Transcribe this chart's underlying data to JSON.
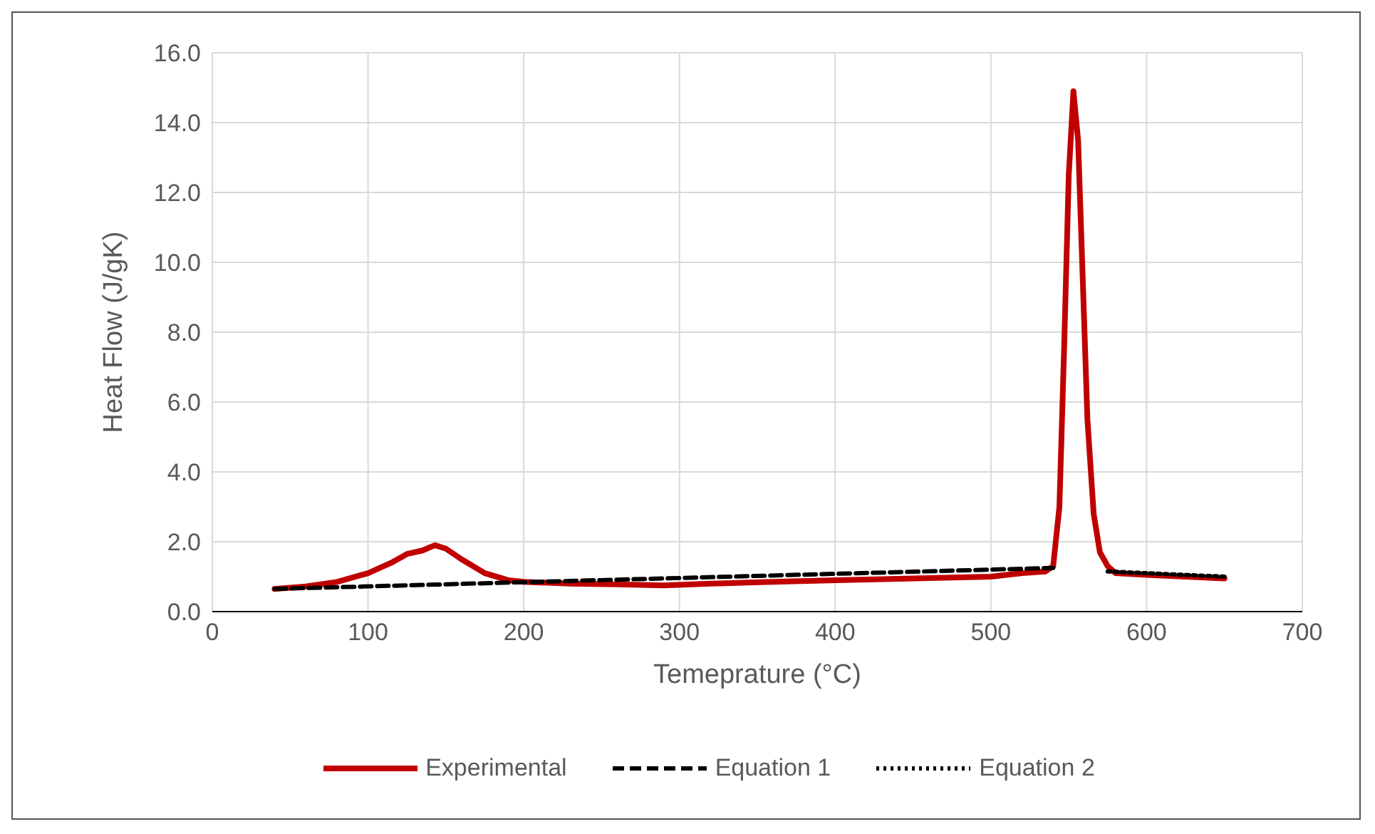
{
  "chart_data": {
    "type": "line",
    "xlabel": "Temeprature (°C)",
    "ylabel": "Heat Flow (J/gK)",
    "xlim": [
      0,
      700
    ],
    "xticks": [
      0,
      100,
      200,
      300,
      400,
      500,
      600,
      700
    ],
    "ylim": [
      0,
      16
    ],
    "yticks": [
      {
        "value": 0,
        "label": "0.0"
      },
      {
        "value": 2,
        "label": "2.0"
      },
      {
        "value": 4,
        "label": "4.0"
      },
      {
        "value": 6,
        "label": "6.0"
      },
      {
        "value": 8,
        "label": "8.0"
      },
      {
        "value": 10,
        "label": "10.0"
      },
      {
        "value": 12,
        "label": "12.0"
      },
      {
        "value": 14,
        "label": "14.0"
      },
      {
        "value": 16,
        "label": "16.0"
      }
    ],
    "grid": true,
    "legend": "bottom",
    "marker": "none",
    "series": [
      {
        "name": "Experimental",
        "color": "#c00000",
        "line_style": "solid",
        "x": [
          40,
          60,
          80,
          100,
          115,
          125,
          135,
          143,
          150,
          160,
          175,
          190,
          200,
          230,
          260,
          290,
          320,
          360,
          400,
          450,
          500,
          520,
          535,
          540,
          544,
          547,
          550,
          553,
          556,
          559,
          562,
          566,
          570,
          575,
          580,
          600,
          625,
          650
        ],
        "values": [
          0.65,
          0.72,
          0.85,
          1.1,
          1.4,
          1.65,
          1.75,
          1.9,
          1.8,
          1.5,
          1.1,
          0.9,
          0.85,
          0.8,
          0.78,
          0.75,
          0.8,
          0.85,
          0.9,
          0.95,
          1.0,
          1.1,
          1.15,
          1.3,
          3.0,
          7.5,
          12.5,
          14.9,
          13.5,
          9.5,
          5.5,
          2.8,
          1.7,
          1.3,
          1.1,
          1.05,
          1.0,
          0.95
        ]
      },
      {
        "name": "Equation 1",
        "color": "#000000",
        "line_style": "dashed",
        "x": [
          40,
          540
        ],
        "values": [
          0.65,
          1.25
        ]
      },
      {
        "name": "Equation 2",
        "color": "#000000",
        "line_style": "dotted",
        "x": [
          575,
          600,
          650
        ],
        "values": [
          1.15,
          1.1,
          1.0
        ]
      }
    ]
  }
}
